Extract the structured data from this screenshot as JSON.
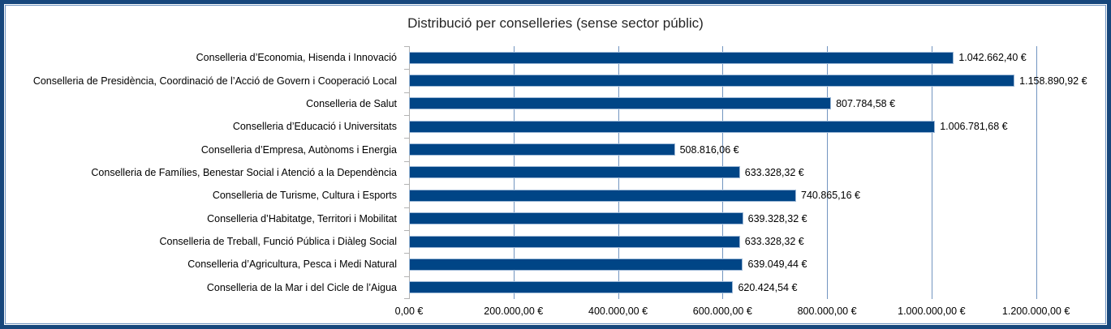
{
  "chart_data": {
    "type": "bar",
    "orientation": "horizontal",
    "title": "Distribució per conselleries (sense sector públic)",
    "categories": [
      "Conselleria d’Economia, Hisenda i Innovació",
      "Conselleria de Presidència, Coordinació de l’Acció de Govern i Cooperació Local",
      "Conselleria de Salut",
      "Conselleria d’Educació i Universitats",
      "Conselleria d’Empresa, Autònoms i Energia",
      "Conselleria de Famílies, Benestar Social i Atenció a la Dependència",
      "Conselleria de Turisme, Cultura i Esports",
      "Conselleria d’Habitatge, Territori i Mobilitat",
      "Conselleria de Treball, Funció Pública i Diàleg Social",
      "Conselleria d’Agricultura, Pesca i Medi Natural",
      "Conselleria de la Mar i del Cicle de l’Aigua"
    ],
    "values": [
      1042662.4,
      1158890.92,
      807784.58,
      1006781.68,
      508816.06,
      633328.32,
      740865.16,
      639328.32,
      633328.32,
      639049.44,
      620424.54
    ],
    "value_labels": [
      "1.042.662,40 €",
      "1.158.890,92 €",
      "807.784,58 €",
      "1.006.781,68 €",
      "508.816,06 €",
      "633.328,32 €",
      "740.865,16 €",
      "639.328,32 €",
      "633.328,32 €",
      "639.049,44 €",
      "620.424,54 €"
    ],
    "x_tick_values": [
      0,
      200000,
      400000,
      600000,
      800000,
      1000000,
      1200000
    ],
    "x_tick_labels": [
      "0,00 €",
      "200.000,00 €",
      "400.000,00 €",
      "600.000,00 €",
      "800.000,00 €",
      "1.000.000,00 €",
      "1.200.000,00 €"
    ],
    "xlim": [
      0,
      1300000
    ],
    "grid": "vertical",
    "legend": "none",
    "colors": {
      "bar_fill": "#004586",
      "bar_border": "#9db8d6",
      "gridline": "#7295c0",
      "axis_line": "#b3b3b3",
      "frame_border": "#17477c",
      "frame_inner_line": "#6f92bf",
      "title_text": "#262626",
      "label_text": "#000000"
    }
  }
}
